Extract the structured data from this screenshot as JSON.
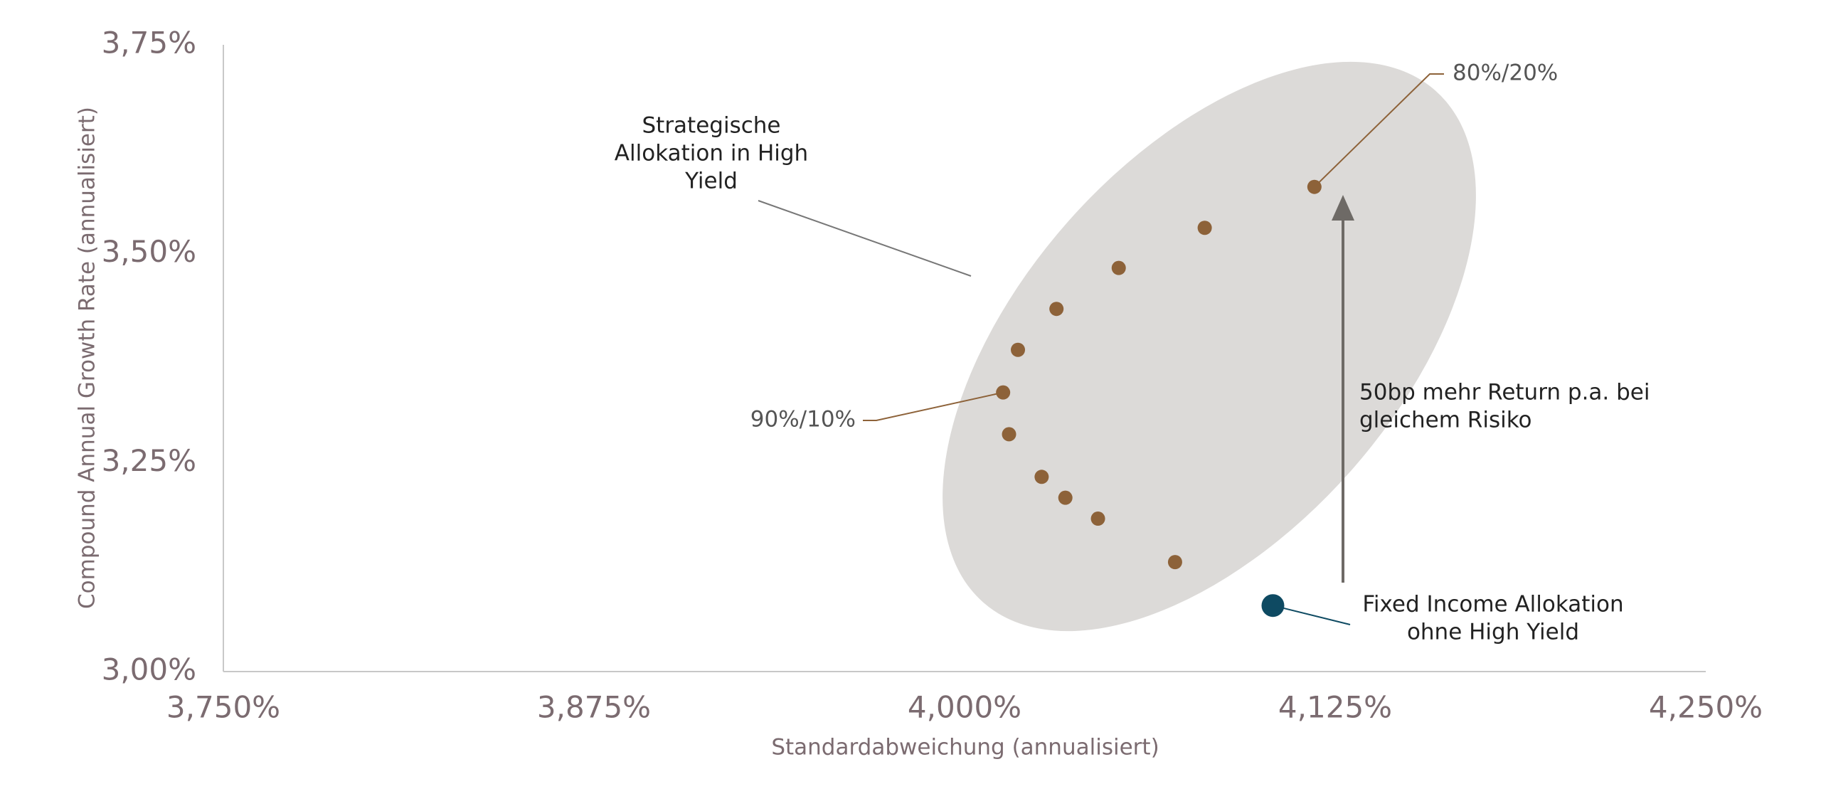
{
  "chart_data": {
    "type": "scatter",
    "x_label": "Standardabweichung (annualisiert)",
    "y_label": "Compound Annual Growth Rate (annualisiert)",
    "xlim": [
      3.75,
      4.25
    ],
    "xticks": [
      {
        "value": 3.75,
        "label": "3,750%"
      },
      {
        "value": 3.875,
        "label": "3,875%"
      },
      {
        "value": 4.0,
        "label": "4,000%"
      },
      {
        "value": 4.125,
        "label": "4,125%"
      },
      {
        "value": 4.25,
        "label": "4,250%"
      }
    ],
    "ylim": [
      3.0,
      3.75
    ],
    "yticks": [
      {
        "value": 3.0,
        "label": "3,00%"
      },
      {
        "value": 3.25,
        "label": "3,25%"
      },
      {
        "value": 3.5,
        "label": "3,50%"
      },
      {
        "value": 3.75,
        "label": "3,75%"
      }
    ],
    "series": [
      {
        "color": "#8d6239",
        "x": [
          4.118,
          4.081,
          4.052,
          4.031,
          4.018,
          4.013,
          4.015,
          4.026,
          4.034,
          4.045,
          4.071
        ],
        "values": [
          3.58,
          3.531,
          3.483,
          3.434,
          3.385,
          3.334,
          3.284,
          3.233,
          3.208,
          3.183,
          3.131
        ]
      },
      {
        "color": "#0e4a62",
        "x": [
          4.104
        ],
        "values": [
          3.079
        ]
      }
    ],
    "annotations": [
      {
        "lines": [
          "Strategische",
          "Allokation in High",
          "Yield"
        ]
      },
      {
        "lines": [
          "80%/20%"
        ]
      },
      {
        "lines": [
          "90%/10%"
        ]
      },
      {
        "lines": [
          "50bp mehr Return p.a. bei",
          "gleichem Risiko"
        ]
      },
      {
        "lines": [
          "Fixed Income Allokation",
          "ohne High Yield"
        ]
      }
    ]
  }
}
